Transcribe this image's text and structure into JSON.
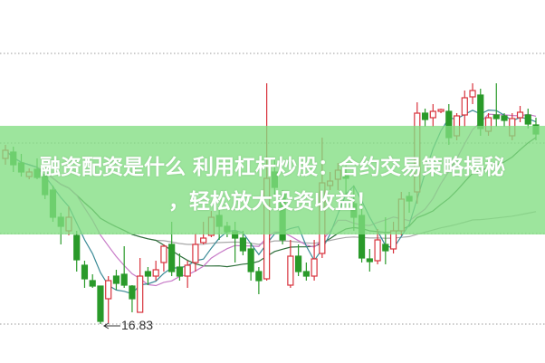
{
  "headline": {
    "line1": "融资配资是什么 利用杠杆炒股：合约交易策略揭秘",
    "line2": "，轻松放大投资收益！"
  },
  "chart_data": {
    "type": "candlestick",
    "ylim": [
      15.97,
      23.99
    ],
    "grid": "horizontal dotted",
    "annotation": {
      "label": "16.83",
      "value": 16.83,
      "candle_index": 12
    },
    "colors": {
      "up": "#d8323c",
      "down": "#2a9a2a",
      "ma5": "#3a8a96",
      "ma10": "#c77ac7",
      "ma20": "#2d6e3a",
      "ma60": "#a8a8a8",
      "banner": "#82de82"
    },
    "moving_averages": [
      5,
      10,
      20,
      60
    ],
    "ohlc": [
      [
        20.49,
        20.79,
        20.35,
        20.67
      ],
      [
        20.63,
        20.75,
        20.19,
        20.35
      ],
      [
        20.39,
        20.59,
        20.09,
        20.19
      ],
      [
        20.09,
        20.27,
        20.03,
        20.19
      ],
      [
        20.25,
        20.49,
        20.03,
        20.07
      ],
      [
        20.13,
        20.29,
        19.59,
        19.69
      ],
      [
        19.79,
        19.89,
        19.09,
        19.19
      ],
      [
        19.19,
        19.29,
        18.59,
        18.99
      ],
      [
        18.89,
        19.43,
        18.79,
        19.19
      ],
      [
        18.79,
        18.89,
        17.99,
        18.25
      ],
      [
        18.13,
        18.23,
        17.63,
        17.83
      ],
      [
        17.79,
        17.93,
        17.63,
        17.67
      ],
      [
        17.67,
        17.67,
        16.83,
        16.89
      ],
      [
        17.39,
        17.89,
        16.85,
        17.79
      ],
      [
        17.89,
        18.03,
        17.59,
        17.73
      ],
      [
        17.93,
        18.55,
        17.63,
        17.69
      ],
      [
        17.67,
        17.69,
        17.09,
        17.39
      ],
      [
        17.09,
        18.29,
        17.09,
        17.89
      ],
      [
        17.99,
        18.09,
        17.69,
        17.89
      ],
      [
        17.89,
        18.23,
        17.79,
        18.03
      ],
      [
        18.19,
        18.59,
        17.99,
        18.55
      ],
      [
        18.59,
        19.09,
        17.89,
        17.99
      ],
      [
        18.09,
        18.39,
        17.79,
        17.89
      ],
      [
        17.89,
        18.23,
        17.63,
        18.13
      ],
      [
        18.19,
        18.83,
        17.99,
        18.59
      ],
      [
        18.63,
        19.09,
        18.59,
        18.73
      ],
      [
        18.79,
        19.33,
        18.75,
        19.19
      ],
      [
        19.23,
        19.39,
        18.69,
        18.99
      ],
      [
        18.99,
        19.09,
        18.75,
        18.87
      ],
      [
        18.87,
        19.09,
        18.19,
        18.73
      ],
      [
        18.73,
        18.89,
        18.35,
        18.45
      ],
      [
        18.49,
        18.63,
        17.79,
        17.99
      ],
      [
        17.99,
        18.09,
        17.49,
        17.79
      ],
      [
        17.83,
        22.15,
        17.79,
        20.05
      ],
      [
        20.19,
        20.49,
        19.69,
        19.85
      ],
      [
        19.69,
        19.79,
        18.59,
        18.69
      ],
      [
        17.69,
        18.69,
        17.63,
        18.33
      ],
      [
        18.33,
        18.59,
        17.89,
        17.99
      ],
      [
        17.99,
        18.19,
        17.79,
        17.89
      ],
      [
        17.89,
        18.69,
        17.79,
        18.27
      ],
      [
        18.39,
        20.95,
        18.29,
        19.95
      ],
      [
        19.89,
        20.19,
        19.79,
        19.99
      ],
      [
        20.03,
        20.39,
        19.79,
        20.23
      ],
      [
        20.15,
        20.39,
        19.69,
        20.05
      ],
      [
        19.49,
        19.89,
        18.89,
        19.19
      ],
      [
        19.23,
        19.49,
        18.19,
        18.29
      ],
      [
        18.27,
        18.49,
        17.99,
        18.21
      ],
      [
        18.23,
        18.93,
        18.15,
        18.69
      ],
      [
        18.59,
        19.19,
        18.15,
        18.45
      ],
      [
        18.49,
        19.09,
        18.39,
        18.89
      ],
      [
        18.89,
        19.75,
        18.79,
        19.59
      ],
      [
        19.65,
        19.75,
        19.29,
        19.55
      ],
      [
        19.75,
        21.73,
        19.49,
        21.49
      ],
      [
        21.49,
        21.59,
        21.19,
        21.35
      ],
      [
        21.39,
        21.69,
        21.19,
        21.53
      ],
      [
        21.53,
        21.59,
        21.49,
        21.57
      ],
      [
        21.53,
        21.69,
        20.79,
        20.95
      ],
      [
        20.99,
        21.49,
        20.89,
        21.43
      ],
      [
        21.45,
        21.99,
        21.19,
        21.83
      ],
      [
        21.85,
        22.15,
        21.69,
        21.99
      ],
      [
        21.89,
        22.03,
        20.99,
        21.15
      ],
      [
        21.09,
        21.49,
        20.99,
        21.39
      ],
      [
        21.45,
        22.15,
        21.19,
        21.37
      ],
      [
        21.43,
        21.49,
        21.19,
        21.33
      ],
      [
        20.99,
        21.49,
        20.89,
        21.37
      ],
      [
        21.39,
        21.65,
        21.29,
        21.51
      ],
      [
        21.45,
        21.59,
        21.15,
        21.25
      ],
      [
        21.23,
        21.39,
        20.89,
        21.03
      ]
    ]
  }
}
